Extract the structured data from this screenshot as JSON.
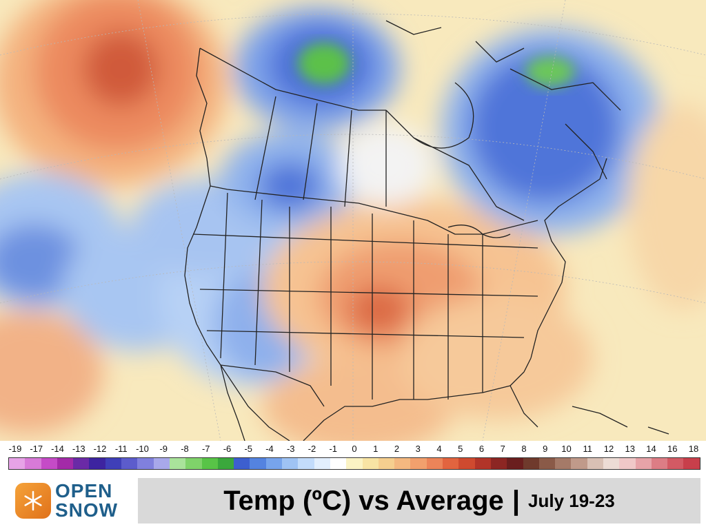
{
  "map": {
    "type": "temperature anomaly map",
    "region": "North America"
  },
  "legend": {
    "ticks": [
      "-19",
      "-17",
      "-14",
      "-13",
      "-12",
      "-11",
      "-10",
      "-9",
      "-8",
      "-7",
      "-6",
      "-5",
      "-4",
      "-3",
      "-2",
      "-1",
      "0",
      "1",
      "2",
      "3",
      "4",
      "5",
      "6",
      "7",
      "8",
      "9",
      "10",
      "11",
      "12",
      "13",
      "14",
      "16",
      "18"
    ],
    "colors": [
      "#e7a3e7",
      "#d87ad8",
      "#c54bc7",
      "#a32aa8",
      "#6a2aa6",
      "#3d24a0",
      "#3f3fb8",
      "#5c5ccc",
      "#8080dd",
      "#a8a8ea",
      "#a9e39b",
      "#7fd36a",
      "#58c447",
      "#3aa83c",
      "#3d5fcf",
      "#5483e0",
      "#77a4ec",
      "#9fc3f4",
      "#c3dcfb",
      "#e3effd",
      "#ffffff",
      "#fbf3c4",
      "#f8e4a4",
      "#f6cf8f",
      "#f4b880",
      "#f2a06d",
      "#ec8459",
      "#e2643f",
      "#cf4a2f",
      "#b23428",
      "#8c2623",
      "#6a1e1e",
      "#6f3a2c",
      "#8a5a48",
      "#a57a68",
      "#c09a8a",
      "#d9c0b4",
      "#eddcd5",
      "#f0c8c8",
      "#e7a3a8",
      "#dd7d85",
      "#d35a64",
      "#c83f4b"
    ]
  },
  "footer": {
    "logo_line1": "OPEN",
    "logo_line2": "SNOW",
    "title": "Temp (ºC) vs Average",
    "separator": "|",
    "date_range": "July 19-23"
  },
  "colors": {
    "warm_strong": "#d85e3c",
    "warm_mid": "#ee9a6b",
    "warm_light": "#f6c89a",
    "cool_strong": "#3f63d4",
    "cool_mid": "#7ea3ea",
    "cool_light": "#c9dcf7",
    "cold_green": "#5cc14a",
    "title_bg": "#d9d9d9",
    "logo_blue": "#1f5f8b",
    "logo_orange": "#e98b2a"
  }
}
